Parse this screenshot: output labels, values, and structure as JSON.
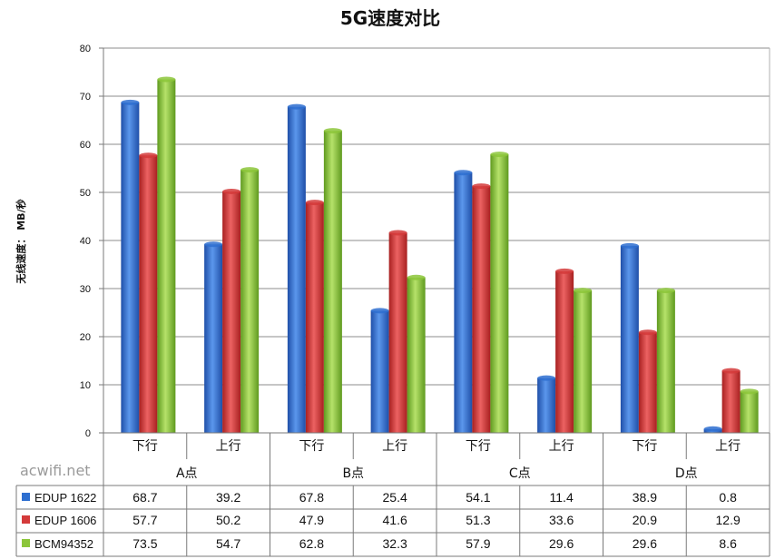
{
  "watermark": "acwifi.net",
  "chart_data": {
    "type": "bar",
    "title": "5G速度对比",
    "ylabel": "无线速度： MB/秒",
    "xlabel": "",
    "ylim": [
      0,
      80
    ],
    "yticks": [
      0,
      10,
      20,
      30,
      40,
      50,
      60,
      70,
      80
    ],
    "grid": true,
    "legend": "data-table",
    "groups": [
      "A点",
      "B点",
      "C点",
      "D点"
    ],
    "categories": [
      "下行",
      "上行",
      "下行",
      "上行",
      "下行",
      "上行",
      "下行",
      "上行"
    ],
    "series": [
      {
        "name": "EDUP 1622",
        "color": "#2e6fd0",
        "values": [
          68.7,
          39.2,
          67.8,
          25.4,
          54.1,
          11.4,
          38.9,
          0.8
        ]
      },
      {
        "name": "EDUP 1606",
        "color": "#d43a3a",
        "values": [
          57.7,
          50.2,
          47.9,
          41.6,
          51.3,
          33.6,
          20.9,
          12.9
        ]
      },
      {
        "name": "BCM94352",
        "color": "#8cc63a",
        "values": [
          73.5,
          54.7,
          62.8,
          32.3,
          57.9,
          29.6,
          29.6,
          8.6
        ]
      }
    ],
    "table_values": [
      [
        "68.7",
        "39.2",
        "67.8",
        "25.4",
        "54.1",
        "11.4",
        "38.9",
        "0.8"
      ],
      [
        "57.7",
        "50.2",
        "47.9",
        "41.6",
        "51.3",
        "33.6",
        "20.9",
        "12.9"
      ],
      [
        "73.5",
        "54.7",
        "62.8",
        "32.3",
        "57.9",
        "29.6",
        "29.6",
        "8.6"
      ]
    ]
  }
}
